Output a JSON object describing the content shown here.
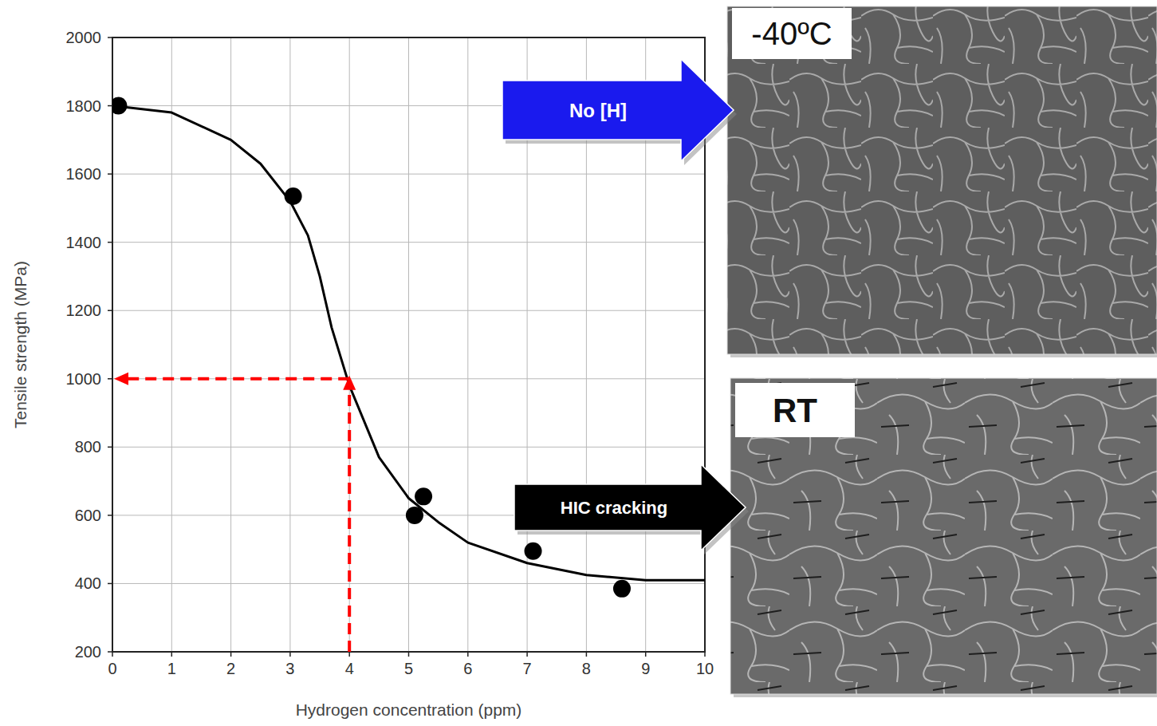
{
  "chart_data": {
    "type": "line",
    "x_label": "Hydrogen concentration (ppm)",
    "y_label": "Tensile strength (MPa)",
    "xlim": [
      0,
      10
    ],
    "ylim": [
      200,
      2000
    ],
    "xticks": [
      0,
      1,
      2,
      3,
      4,
      5,
      6,
      7,
      8,
      9,
      10
    ],
    "yticks": [
      200,
      400,
      600,
      800,
      1000,
      1200,
      1400,
      1600,
      1800,
      2000
    ],
    "grid": true,
    "series": [
      {
        "type": "scatter",
        "marker": "circle",
        "color": "#000000",
        "x": [
          0.1,
          3.05,
          5.1,
          5.25,
          7.1,
          8.6
        ],
        "values": [
          1800,
          1535,
          600,
          655,
          495,
          385
        ]
      },
      {
        "type": "line",
        "line_style": "solid",
        "color": "#000000",
        "x": [
          0,
          1,
          2,
          2.5,
          3,
          3.3,
          3.5,
          3.7,
          4,
          4.5,
          5,
          5.5,
          6,
          7,
          8,
          9,
          10
        ],
        "values": [
          1800,
          1780,
          1700,
          1630,
          1520,
          1420,
          1300,
          1150,
          980,
          770,
          650,
          580,
          520,
          460,
          425,
          410,
          410
        ]
      }
    ],
    "guide": {
      "x": 4,
      "y": 1000,
      "color": "#ff0000",
      "line_style": "dashed"
    },
    "annotations": [
      {
        "text": "No [H]",
        "color": "#1a1aee"
      },
      {
        "text": "HIC cracking",
        "color": "#000000"
      }
    ],
    "panels": [
      {
        "label": "-40ºC"
      },
      {
        "label": "RT"
      }
    ]
  }
}
